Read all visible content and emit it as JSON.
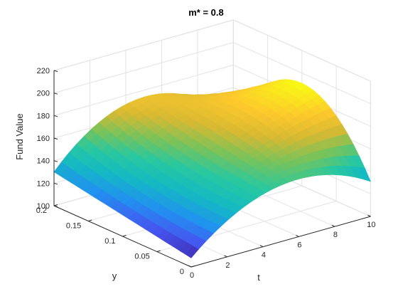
{
  "chart_data": {
    "type": "surface",
    "title": "m* = 0.8",
    "xlabel": "t",
    "ylabel": "y",
    "zlabel": "Fund Value",
    "xlim": [
      0,
      10
    ],
    "ylim": [
      0,
      0.2
    ],
    "zlim": [
      100,
      220
    ],
    "xticks": [
      0,
      2,
      4,
      6,
      8,
      10
    ],
    "yticks": [
      0,
      0.05,
      0.1,
      0.15,
      0.2
    ],
    "zticks": [
      100,
      120,
      140,
      160,
      180,
      200,
      220
    ],
    "xtick_labels": [
      "0",
      "2",
      "4",
      "6",
      "8",
      "10"
    ],
    "ytick_labels": [
      "0",
      "0.05",
      "0.1",
      "0.15",
      "0.2"
    ],
    "ztick_labels": [
      "100",
      "120",
      "140",
      "160",
      "180",
      "200",
      "220"
    ],
    "grid": true,
    "colormap": "parula",
    "surface": {
      "t": [
        0,
        5,
        10
      ],
      "y": [
        0,
        0.1,
        0.2
      ],
      "value": [
        [
          108,
          150,
          131
        ],
        [
          119,
          162,
          191
        ],
        [
          130,
          174,
          133
        ]
      ]
    }
  }
}
